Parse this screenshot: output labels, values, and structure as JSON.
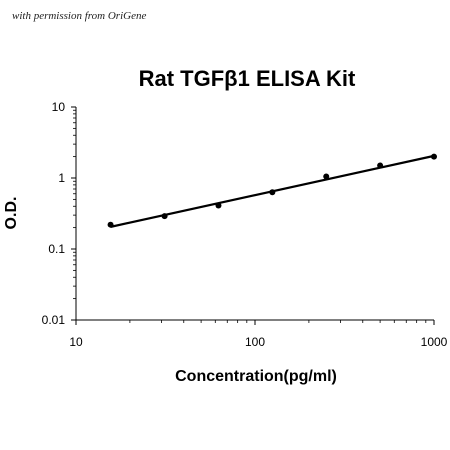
{
  "watermark": "with permission from OriGene",
  "chart_data": {
    "type": "scatter",
    "title": "Rat TGFβ1 ELISA Kit",
    "xlabel": "Concentration(pg/ml)",
    "ylabel": "O.D.",
    "x_scale": "log",
    "y_scale": "log",
    "xlim": [
      10,
      1000
    ],
    "ylim": [
      0.01,
      10
    ],
    "x_ticks": [
      "10",
      "100",
      "1000"
    ],
    "y_ticks": [
      "10",
      "1",
      "0.1",
      "0.01"
    ],
    "grid": false,
    "points": [
      {
        "x": 15.6,
        "y": 0.22
      },
      {
        "x": 31.25,
        "y": 0.29
      },
      {
        "x": 62.5,
        "y": 0.41
      },
      {
        "x": 125,
        "y": 0.63
      },
      {
        "x": 250,
        "y": 1.05
      },
      {
        "x": 500,
        "y": 1.5
      },
      {
        "x": 1000,
        "y": 2.0
      }
    ],
    "trendline": {
      "x": [
        15.6,
        1000
      ],
      "y": [
        0.205,
        2.05
      ]
    }
  }
}
